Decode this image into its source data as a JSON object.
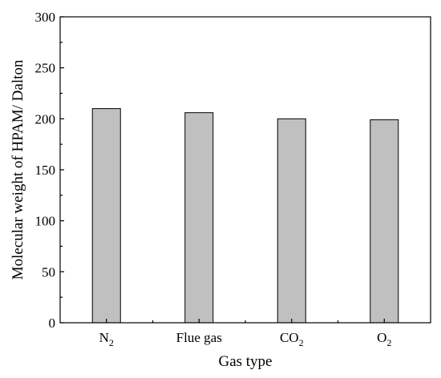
{
  "chart_data": {
    "type": "bar",
    "categories": [
      {
        "base": "N",
        "sub": "2"
      },
      {
        "base": "Flue gas",
        "sub": ""
      },
      {
        "base": "CO",
        "sub": "2"
      },
      {
        "base": "O",
        "sub": "2"
      }
    ],
    "values": [
      210,
      206,
      200,
      199
    ],
    "xlabel": "Gas type",
    "ylabel": "Molecular weight of HPAM/ Dalton",
    "ylim": [
      0,
      300
    ],
    "yticks": [
      "0",
      "50",
      "100",
      "150",
      "200",
      "250",
      "300"
    ],
    "bar_color": "#c0c0c0",
    "grid": false,
    "legend": "none"
  }
}
